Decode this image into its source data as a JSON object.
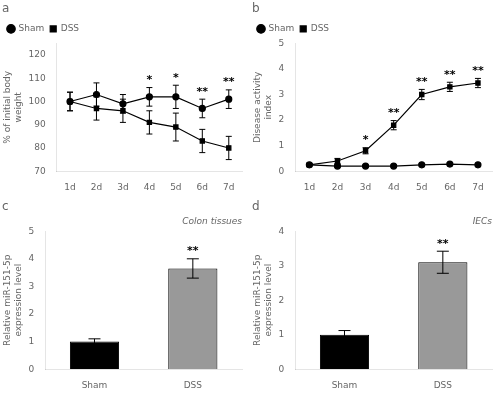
{
  "chart_data": [
    {
      "type": "line",
      "title": "a",
      "categories": [
        "1d",
        "2d",
        "3d",
        "4d",
        "5d",
        "6d",
        "7d"
      ],
      "series": [
        {
          "name": "Sham",
          "color": "#000000",
          "marker": "circle",
          "values": [
            100,
            103,
            99,
            102,
            102,
            97,
            101
          ],
          "errors": [
            4,
            5,
            4,
            4,
            5,
            4,
            4
          ]
        },
        {
          "name": "DSS",
          "color": "#000000",
          "marker": "square",
          "values": [
            100,
            97,
            96,
            91,
            89,
            83,
            80
          ],
          "errors": [
            4,
            5,
            5,
            5,
            6,
            5,
            5
          ]
        }
      ],
      "annotations": [
        {
          "category": "4d",
          "text": "*"
        },
        {
          "category": "5d",
          "text": "*"
        },
        {
          "category": "6d",
          "text": "**"
        },
        {
          "category": "7d",
          "text": "**"
        }
      ],
      "ylabel": "% of initial body\nweight",
      "ylim": [
        70,
        125
      ],
      "yticks": [
        70,
        80,
        90,
        100,
        110,
        120
      ],
      "legend": "upper left",
      "grid": false
    },
    {
      "type": "line",
      "title": "b",
      "categories": [
        "1d",
        "2d",
        "3d",
        "4d",
        "5d",
        "6d",
        "7d"
      ],
      "series": [
        {
          "name": "Sham",
          "color": "#000000",
          "marker": "circle",
          "values": [
            0.25,
            0.2,
            0.2,
            0.2,
            0.25,
            0.28,
            0.25
          ],
          "errors": [
            0.05,
            0.05,
            0.05,
            0.05,
            0.05,
            0.05,
            0.05
          ]
        },
        {
          "name": "DSS",
          "color": "#000000",
          "marker": "square",
          "values": [
            0.25,
            0.4,
            0.8,
            1.8,
            3.0,
            3.3,
            3.45
          ],
          "errors": [
            0.05,
            0.1,
            0.12,
            0.18,
            0.2,
            0.18,
            0.18
          ]
        }
      ],
      "annotations": [
        {
          "category": "3d",
          "text": "*"
        },
        {
          "category": "4d",
          "text": "**"
        },
        {
          "category": "5d",
          "text": "**"
        },
        {
          "category": "6d",
          "text": "**"
        },
        {
          "category": "7d",
          "text": "**"
        }
      ],
      "ylabel": "Disease activity\nindex",
      "ylim": [
        0,
        5
      ],
      "yticks": [
        0,
        1,
        2,
        3,
        4,
        5
      ],
      "legend": "upper left",
      "grid": false
    },
    {
      "type": "bar",
      "title": "c",
      "subtitle": "Colon tissues",
      "categories": [
        "Sham",
        "DSS"
      ],
      "values": [
        1.0,
        3.65
      ],
      "errors": [
        0.1,
        0.35
      ],
      "colors": [
        "#000000",
        "#999999"
      ],
      "annotations": [
        {
          "category": "DSS",
          "text": "**"
        }
      ],
      "ylabel": "Relative miR-151-5p\nexpression level",
      "ylim": [
        0,
        5
      ],
      "yticks": [
        0,
        1,
        2,
        3,
        4,
        5
      ],
      "grid": false
    },
    {
      "type": "bar",
      "title": "d",
      "subtitle": "IECs",
      "categories": [
        "Sham",
        "DSS"
      ],
      "values": [
        1.0,
        3.1
      ],
      "errors": [
        0.12,
        0.32
      ],
      "colors": [
        "#000000",
        "#999999"
      ],
      "annotations": [
        {
          "category": "DSS",
          "text": "**"
        }
      ],
      "ylabel": "Relative miR-151-5p\nexpression level",
      "ylim": [
        0,
        4
      ],
      "yticks": [
        0,
        1,
        2,
        3,
        4
      ],
      "grid": false
    }
  ]
}
